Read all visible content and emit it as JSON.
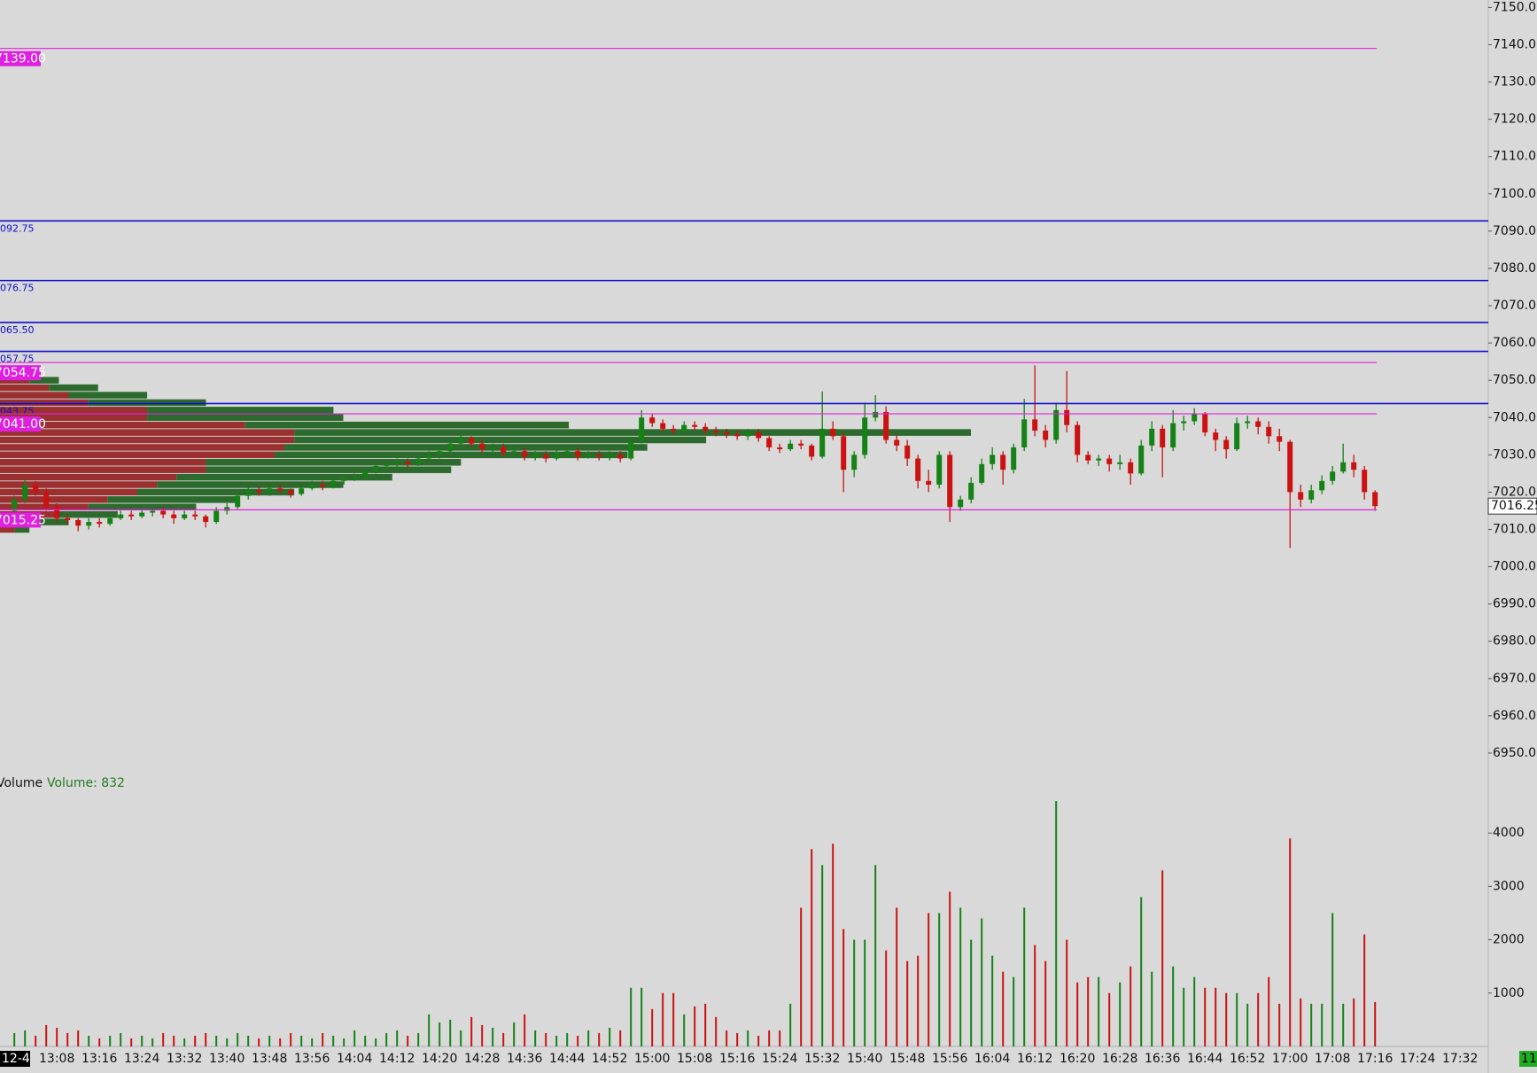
{
  "chart_data": [
    {
      "type": "candlestick",
      "ylim": [
        6945,
        7152
      ],
      "yticks": [
        {
          "value": 6950,
          "label": "6950.00"
        },
        {
          "value": 6960,
          "label": "6960.00"
        },
        {
          "value": 6970,
          "label": "6970.00"
        },
        {
          "value": 6980,
          "label": "6980.00"
        },
        {
          "value": 6990,
          "label": "6990.00"
        },
        {
          "value": 7000,
          "label": "7000.00"
        },
        {
          "value": 7010,
          "label": "7010.00"
        },
        {
          "value": 7020,
          "label": "7020.00"
        },
        {
          "value": 7030,
          "label": "7030.00"
        },
        {
          "value": 7040,
          "label": "7040.00"
        },
        {
          "value": 7050,
          "label": "7050.00"
        },
        {
          "value": 7060,
          "label": "7060.00"
        },
        {
          "value": 7070,
          "label": "7070.00"
        },
        {
          "value": 7080,
          "label": "7080.00"
        },
        {
          "value": 7090,
          "label": "7090.00"
        },
        {
          "value": 7100,
          "label": "7100.00"
        },
        {
          "value": 7110,
          "label": "7110.00"
        },
        {
          "value": 7120,
          "label": "7120.00"
        },
        {
          "value": 7130,
          "label": "7130.00"
        },
        {
          "value": 7140,
          "label": "7140.00"
        },
        {
          "value": 7150,
          "label": "7150.00"
        }
      ],
      "up_color": "#148214",
      "down_color": "#cc1111",
      "ohlc": [
        [
          7015,
          7019,
          7013.5,
          7018
        ],
        [
          7018,
          7023.5,
          7017,
          7022
        ],
        [
          7022,
          7023,
          7019,
          7020
        ],
        [
          7020,
          7021,
          7015,
          7016
        ],
        [
          7016,
          7017,
          7012,
          7013
        ],
        [
          7013,
          7014,
          7011.5,
          7012.5
        ],
        [
          7012.5,
          7013,
          7009.5,
          7011
        ],
        [
          7011,
          7013,
          7010,
          7012
        ],
        [
          7012,
          7013,
          7010.5,
          7011.5
        ],
        [
          7011.5,
          7014,
          7011,
          7013
        ],
        [
          7013,
          7015,
          7012.5,
          7014
        ],
        [
          7014,
          7015,
          7012.5,
          7013.5
        ],
        [
          7013.5,
          7015.5,
          7013,
          7014.5
        ],
        [
          7014.5,
          7016,
          7013.5,
          7015
        ],
        [
          7015,
          7016,
          7013,
          7014
        ],
        [
          7014,
          7015,
          7011.5,
          7013
        ],
        [
          7013,
          7015,
          7012.5,
          7014
        ],
        [
          7014,
          7015,
          7012.5,
          7013.5
        ],
        [
          7013.5,
          7014,
          7010.5,
          7012
        ],
        [
          7012,
          7016,
          7011.5,
          7015
        ],
        [
          7015,
          7017,
          7014,
          7016
        ],
        [
          7016,
          7020,
          7015.5,
          7019
        ],
        [
          7019,
          7021.5,
          7018,
          7020.5
        ],
        [
          7020.5,
          7021.5,
          7019,
          7020
        ],
        [
          7020,
          7022,
          7019,
          7021
        ],
        [
          7021,
          7022,
          7019.5,
          7020.5
        ],
        [
          7020.5,
          7021,
          7018.5,
          7019.5
        ],
        [
          7019.5,
          7022,
          7019,
          7021
        ],
        [
          7021,
          7023,
          7020.5,
          7022
        ],
        [
          7022,
          7023,
          7020.5,
          7021.5
        ],
        [
          7021.5,
          7024,
          7021,
          7023
        ],
        [
          7023,
          7024.5,
          7022,
          7023.5
        ],
        [
          7023.5,
          7025,
          7023,
          7024
        ],
        [
          7024,
          7026.5,
          7023.5,
          7025.5
        ],
        [
          7025.5,
          7028,
          7025,
          7027
        ],
        [
          7027,
          7028.5,
          7026,
          7027.5
        ],
        [
          7027.5,
          7029,
          7026.5,
          7028
        ],
        [
          7028,
          7029,
          7026.5,
          7027.5
        ],
        [
          7027.5,
          7030,
          7027,
          7029
        ],
        [
          7029,
          7031,
          7028,
          7030
        ],
        [
          7030,
          7032,
          7029,
          7031
        ],
        [
          7031,
          7034,
          7030.5,
          7033
        ],
        [
          7033,
          7035.5,
          7032,
          7034.5
        ],
        [
          7034.5,
          7035,
          7032,
          7033
        ],
        [
          7033,
          7034,
          7030.5,
          7031.5
        ],
        [
          7031.5,
          7033,
          7030.5,
          7032
        ],
        [
          7032,
          7033,
          7029.5,
          7030.5
        ],
        [
          7030.5,
          7032,
          7029.5,
          7031
        ],
        [
          7031,
          7032,
          7028.5,
          7029.5
        ],
        [
          7029.5,
          7031,
          7028.5,
          7030
        ],
        [
          7030,
          7031,
          7028,
          7029
        ],
        [
          7029,
          7031.5,
          7028.5,
          7030.5
        ],
        [
          7030.5,
          7032,
          7029.5,
          7031
        ],
        [
          7031,
          7032,
          7028.5,
          7029.5
        ],
        [
          7029.5,
          7031,
          7029,
          7030
        ],
        [
          7030,
          7031,
          7028.5,
          7029.5
        ],
        [
          7029.5,
          7031,
          7028.5,
          7030
        ],
        [
          7030,
          7031,
          7028,
          7029
        ],
        [
          7029,
          7034.5,
          7028.5,
          7033.5
        ],
        [
          7033.5,
          7042,
          7033,
          7040
        ],
        [
          7040,
          7041,
          7037.5,
          7038.5
        ],
        [
          7038.5,
          7039.5,
          7036,
          7037
        ],
        [
          7037,
          7038,
          7035.5,
          7036.5
        ],
        [
          7036.5,
          7039,
          7036,
          7038
        ],
        [
          7038,
          7039,
          7036.5,
          7037.5
        ],
        [
          7037.5,
          7038.5,
          7035.5,
          7036.5
        ],
        [
          7036.5,
          7037.5,
          7035,
          7036
        ],
        [
          7036,
          7037,
          7034.5,
          7035.5
        ],
        [
          7035.5,
          7036.5,
          7034,
          7035
        ],
        [
          7035,
          7037,
          7034,
          7036
        ],
        [
          7036,
          7037,
          7033.5,
          7034.5
        ],
        [
          7034.5,
          7035,
          7031,
          7032
        ],
        [
          7032,
          7033,
          7030.5,
          7031.5
        ],
        [
          7031.5,
          7034,
          7031,
          7033
        ],
        [
          7033,
          7034,
          7031.5,
          7032.5
        ],
        [
          7032.5,
          7033,
          7028.5,
          7029.5
        ],
        [
          7029.5,
          7047,
          7029,
          7037
        ],
        [
          7037,
          7039,
          7034,
          7035
        ],
        [
          7035,
          7036,
          7020,
          7026
        ],
        [
          7026,
          7031,
          7024,
          7030
        ],
        [
          7030,
          7044,
          7029,
          7040
        ],
        [
          7040,
          7046,
          7039,
          7041.5
        ],
        [
          7041.5,
          7043,
          7033,
          7034
        ],
        [
          7034,
          7035.5,
          7031,
          7032.5
        ],
        [
          7032.5,
          7034,
          7027,
          7029
        ],
        [
          7029,
          7030,
          7021,
          7023
        ],
        [
          7023,
          7026,
          7020,
          7022
        ],
        [
          7022,
          7031,
          7021,
          7030
        ],
        [
          7030,
          7031,
          7012,
          7016
        ],
        [
          7016,
          7019,
          7015,
          7018
        ],
        [
          7018,
          7024,
          7017,
          7022.5
        ],
        [
          7022.5,
          7029,
          7022,
          7027.5
        ],
        [
          7027.5,
          7032,
          7026,
          7030
        ],
        [
          7030,
          7031,
          7022,
          7026
        ],
        [
          7026,
          7033,
          7025,
          7032
        ],
        [
          7032,
          7045,
          7031,
          7039.5
        ],
        [
          7039.5,
          7054,
          7035,
          7036.5
        ],
        [
          7036.5,
          7038,
          7032,
          7034
        ],
        [
          7034,
          7044,
          7033,
          7042
        ],
        [
          7042,
          7052.5,
          7036,
          7038
        ],
        [
          7038,
          7039,
          7028,
          7030
        ],
        [
          7030,
          7031,
          7027.5,
          7028.5
        ],
        [
          7028.5,
          7030,
          7027,
          7029
        ],
        [
          7029,
          7030,
          7025.5,
          7027.5
        ],
        [
          7027.5,
          7030,
          7026,
          7028
        ],
        [
          7028,
          7029,
          7022,
          7025
        ],
        [
          7025,
          7034,
          7024.5,
          7032.5
        ],
        [
          7032.5,
          7039,
          7031,
          7037
        ],
        [
          7037,
          7038,
          7024,
          7032
        ],
        [
          7032,
          7042,
          7031,
          7038.5
        ],
        [
          7038.5,
          7040.5,
          7036.5,
          7039
        ],
        [
          7039,
          7042.5,
          7038,
          7041
        ],
        [
          7041,
          7041.5,
          7035,
          7036
        ],
        [
          7036,
          7037,
          7031,
          7034
        ],
        [
          7034,
          7035,
          7029,
          7031.5
        ],
        [
          7031.5,
          7040,
          7031,
          7038.5
        ],
        [
          7038.5,
          7040.5,
          7037,
          7039
        ],
        [
          7039,
          7040,
          7035.5,
          7037.5
        ],
        [
          7037.5,
          7039,
          7033,
          7035
        ],
        [
          7035,
          7037,
          7031,
          7033.5
        ],
        [
          7033.5,
          7034,
          7005,
          7020
        ],
        [
          7020,
          7022,
          7016,
          7018
        ],
        [
          7018,
          7022,
          7017,
          7020.5
        ],
        [
          7020.5,
          7024.5,
          7019.5,
          7023
        ],
        [
          7023,
          7027,
          7022,
          7025.5
        ],
        [
          7025.5,
          7033,
          7025,
          7028
        ],
        [
          7028,
          7030,
          7024,
          7026
        ],
        [
          7026,
          7027,
          7018,
          7020
        ],
        [
          7020,
          7020.5,
          7015,
          7016.25
        ],
        null,
        null,
        null,
        null,
        null,
        null,
        null,
        null,
        null
      ],
      "levels": [
        {
          "value": 7139,
          "label": "7139.00",
          "color": "#e020e0",
          "boxed": true
        },
        {
          "value": 7092.75,
          "label": "092.75",
          "color": "#1010cc",
          "boxed": false
        },
        {
          "value": 7076.75,
          "label": "076.75",
          "color": "#1010cc",
          "boxed": false
        },
        {
          "value": 7065.5,
          "label": "065.50",
          "color": "#1010cc",
          "boxed": false
        },
        {
          "value": 7057.75,
          "label": "057.75",
          "color": "#1010cc",
          "boxed": false
        },
        {
          "value": 7054.75,
          "label": "7054.75",
          "color": "#e020e0",
          "boxed": true
        },
        {
          "value": 7043.75,
          "label": "043.75",
          "color": "#1010cc",
          "boxed": false
        },
        {
          "value": 7041,
          "label": "7041.00",
          "color": "#e020e0",
          "boxed": true
        },
        {
          "value": 7015.25,
          "label": "7015.25",
          "color": "#e020e0",
          "boxed": true
        }
      ],
      "last_price": {
        "value": 7016.25,
        "label": "7016.25"
      },
      "volume_profile": {
        "prices": [
          7052,
          7050,
          7048,
          7046,
          7044,
          7042,
          7040,
          7038,
          7036,
          7034,
          7032,
          7030,
          7028,
          7026,
          7024,
          7022,
          7020,
          7018,
          7016,
          7014,
          7012,
          7010
        ],
        "buy": [
          150,
          300,
          500,
          800,
          1200,
          1900,
          2000,
          3300,
          6900,
          4200,
          3700,
          3600,
          2600,
          2500,
          2200,
          1900,
          1600,
          1300,
          1100,
          600,
          350,
          150
        ],
        "sell": [
          150,
          300,
          500,
          700,
          900,
          1500,
          1500,
          2500,
          3000,
          3000,
          2900,
          2800,
          2100,
          2100,
          1800,
          1600,
          1400,
          1100,
          900,
          600,
          350,
          150
        ],
        "buy_color": "#2d6a2d",
        "sell_color": "#9a3030"
      }
    },
    {
      "type": "bar",
      "title": "Volume",
      "current_label": "Volume: 832",
      "corner_label": "11",
      "categories": [
        "12-4",
        null,
        null,
        null,
        "13:08",
        null,
        null,
        null,
        "13:16",
        null,
        null,
        null,
        "13:24",
        null,
        null,
        null,
        "13:32",
        null,
        null,
        null,
        "13:40",
        null,
        null,
        null,
        "13:48",
        null,
        null,
        null,
        "13:56",
        null,
        null,
        null,
        "14:04",
        null,
        null,
        null,
        "14:12",
        null,
        null,
        null,
        "14:20",
        null,
        null,
        null,
        "14:28",
        null,
        null,
        null,
        "14:36",
        null,
        null,
        null,
        "14:44",
        null,
        null,
        null,
        "14:52",
        null,
        null,
        null,
        "15:00",
        null,
        null,
        null,
        "15:08",
        null,
        null,
        null,
        "15:16",
        null,
        null,
        null,
        "15:24",
        null,
        null,
        null,
        "15:32",
        null,
        null,
        null,
        "15:40",
        null,
        null,
        null,
        "15:48",
        null,
        null,
        null,
        "15:56",
        null,
        null,
        null,
        "16:04",
        null,
        null,
        null,
        "16:12",
        null,
        null,
        null,
        "16:20",
        null,
        null,
        null,
        "16:28",
        null,
        null,
        null,
        "16:36",
        null,
        null,
        null,
        "16:44",
        null,
        null,
        null,
        "16:52",
        null,
        null,
        null,
        "17:00",
        null,
        null,
        null,
        "17:08",
        null,
        null,
        null,
        "17:16",
        null,
        null,
        null,
        "17:24",
        null,
        null,
        null,
        "17:32",
        null
      ],
      "values": [
        250,
        300,
        200,
        400,
        350,
        250,
        300,
        200,
        150,
        200,
        250,
        150,
        200,
        150,
        250,
        200,
        150,
        200,
        250,
        200,
        150,
        250,
        200,
        150,
        200,
        150,
        250,
        200,
        150,
        250,
        200,
        150,
        300,
        200,
        150,
        250,
        300,
        200,
        250,
        600,
        450,
        500,
        300,
        550,
        400,
        350,
        250,
        450,
        600,
        300,
        250,
        200,
        250,
        200,
        300,
        250,
        350,
        300,
        1100,
        1100,
        700,
        1000,
        1000,
        600,
        750,
        800,
        550,
        300,
        250,
        300,
        200,
        300,
        300,
        800,
        2600,
        3700,
        3400,
        3800,
        2200,
        2000,
        2000,
        3400,
        1800,
        2600,
        1600,
        1700,
        2500,
        2500,
        2900,
        2600,
        2000,
        2400,
        1700,
        1400,
        1300,
        2600,
        1900,
        1600,
        4600,
        2000,
        1200,
        1300,
        1300,
        1000,
        1200,
        1500,
        2800,
        1400,
        3300,
        1500,
        1100,
        1300,
        1100,
        1100,
        1000,
        1000,
        800,
        1000,
        1300,
        800,
        3900,
        900,
        800,
        800,
        2500,
        800,
        900,
        2100,
        832,
        null,
        null,
        null,
        null,
        null,
        null,
        null,
        null,
        null
      ],
      "ylim": [
        0,
        5100
      ],
      "yticks": [
        1000,
        2000,
        3000,
        4000
      ]
    }
  ]
}
